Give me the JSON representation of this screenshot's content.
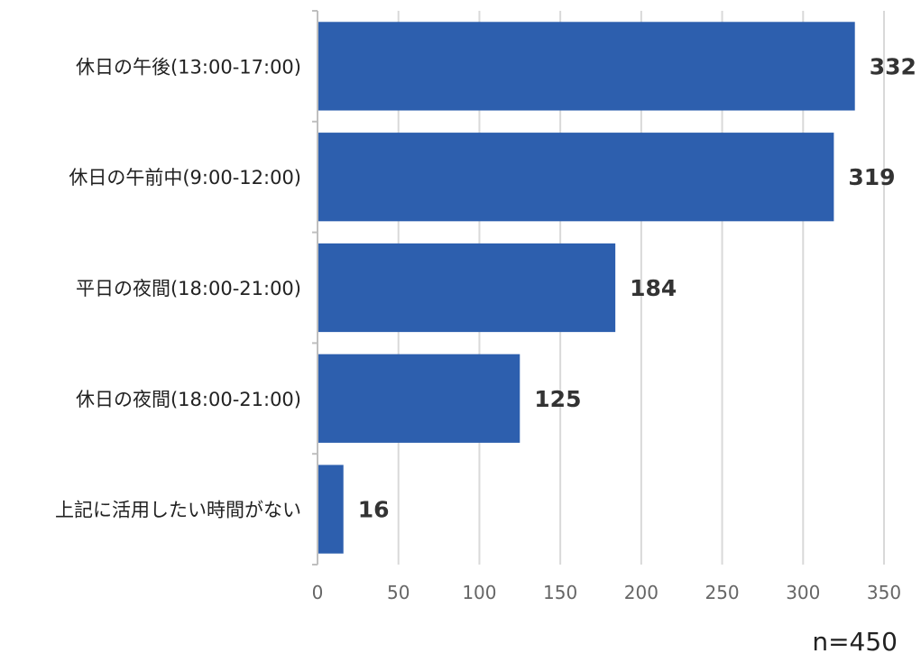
{
  "chart_data": {
    "type": "bar",
    "orientation": "horizontal",
    "categories": [
      "休日の午後(13:00-17:00)",
      "休日の午前中(9:00-12:00)",
      "平日の夜間(18:00-21:00)",
      "休日の夜間(18:00-21:00)",
      "上記に活用したい時間がない"
    ],
    "values": [
      332,
      319,
      184,
      125,
      16
    ],
    "title": "",
    "xlabel": "",
    "ylabel": "",
    "xlim": [
      0,
      350
    ],
    "ticks": [
      0,
      50,
      100,
      150,
      200,
      250,
      300,
      350
    ],
    "grid": "vertical",
    "legend": "none",
    "bar_color": "#2d5fae",
    "grid_color": "#d9d9d9",
    "axis_color": "#bfbfbf",
    "text_color": "#222222",
    "tick_color": "#666666"
  },
  "note": {
    "sample_size": "n=450"
  }
}
